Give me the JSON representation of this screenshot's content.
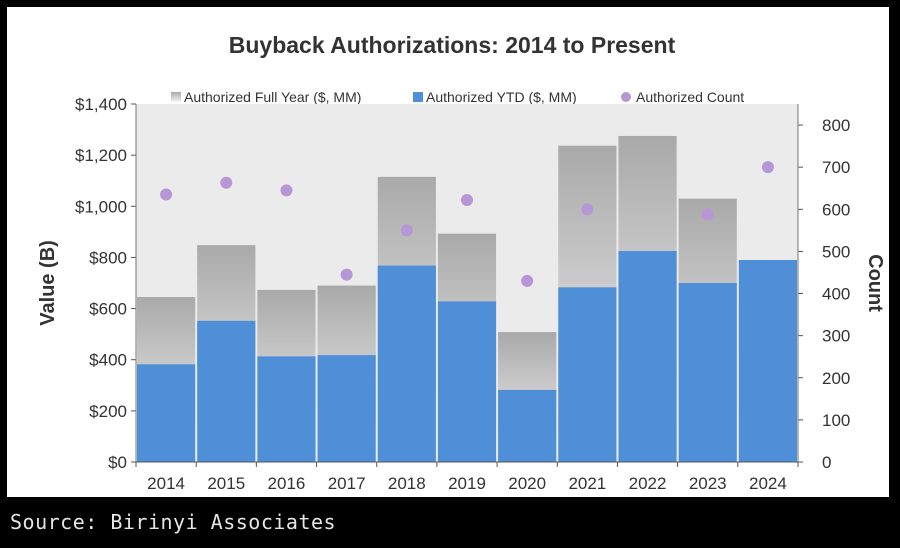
{
  "source_note": "Source: Birinyi Associates",
  "colors": {
    "full_year_top": "#a9a9a9",
    "full_year_bottom": "#f7f7f7",
    "ytd": "#4f8fd8",
    "count": "#b796d6",
    "plot_bg": "#ebebeb"
  },
  "chart_data": {
    "type": "bar",
    "title": "Buyback Authorizations: 2014 to Present",
    "ylabel": "Value (B)",
    "y2label": "Count",
    "categories": [
      "2014",
      "2015",
      "2016",
      "2017",
      "2018",
      "2019",
      "2020",
      "2021",
      "2022",
      "2023",
      "2024"
    ],
    "series": [
      {
        "name": "Authorized Full Year ($, MM)",
        "kind": "bar",
        "axis": "left",
        "values": [
          645,
          848,
          673,
          690,
          1115,
          893,
          508,
          1237,
          1275,
          1030,
          null
        ]
      },
      {
        "name": "Authorized YTD ($, MM)",
        "kind": "bar",
        "axis": "left",
        "values": [
          382,
          552,
          413,
          418,
          768,
          628,
          282,
          683,
          825,
          700,
          790
        ]
      },
      {
        "name": "Authorized Count",
        "kind": "scatter",
        "axis": "right",
        "values": [
          635,
          663,
          645,
          445,
          550,
          622,
          430,
          600,
          null,
          588,
          700
        ]
      }
    ],
    "y_ticks": [
      "$0",
      "$200",
      "$400",
      "$600",
      "$800",
      "$1,000",
      "$1,200",
      "$1,400"
    ],
    "y2_ticks": [
      "0",
      "100",
      "200",
      "300",
      "400",
      "500",
      "600",
      "700",
      "800"
    ],
    "ylim": [
      0,
      1400
    ],
    "y2lim": [
      0,
      850
    ],
    "legend_position": "top",
    "grid": false
  }
}
